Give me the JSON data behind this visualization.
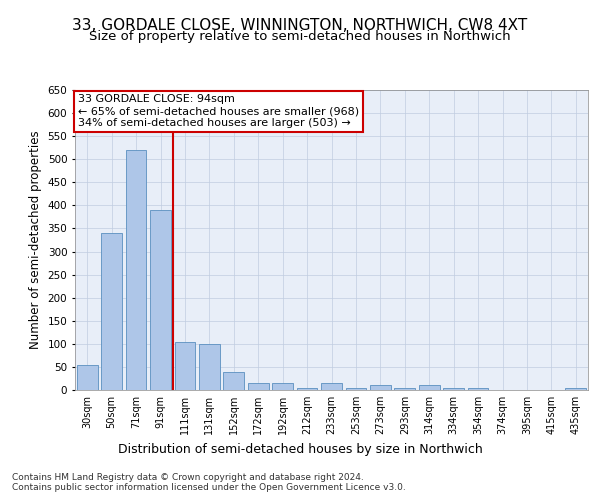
{
  "title": "33, GORDALE CLOSE, WINNINGTON, NORTHWICH, CW8 4XT",
  "subtitle": "Size of property relative to semi-detached houses in Northwich",
  "xlabel": "Distribution of semi-detached houses by size in Northwich",
  "ylabel": "Number of semi-detached properties",
  "categories": [
    "30sqm",
    "50sqm",
    "71sqm",
    "91sqm",
    "111sqm",
    "131sqm",
    "152sqm",
    "172sqm",
    "192sqm",
    "212sqm",
    "233sqm",
    "253sqm",
    "273sqm",
    "293sqm",
    "314sqm",
    "334sqm",
    "354sqm",
    "374sqm",
    "395sqm",
    "415sqm",
    "435sqm"
  ],
  "values": [
    55,
    340,
    520,
    390,
    105,
    100,
    40,
    15,
    15,
    5,
    15,
    5,
    10,
    5,
    10,
    5,
    5,
    0,
    0,
    0,
    5
  ],
  "bar_color": "#aec6e8",
  "bar_edge_color": "#5a8fc0",
  "vline_color": "#cc0000",
  "vline_pos": 3.5,
  "annotation_text": "33 GORDALE CLOSE: 94sqm\n← 65% of semi-detached houses are smaller (968)\n34% of semi-detached houses are larger (503) →",
  "annotation_box_color": "#ffffff",
  "annotation_box_edge": "#cc0000",
  "ylim": [
    0,
    650
  ],
  "yticks": [
    0,
    50,
    100,
    150,
    200,
    250,
    300,
    350,
    400,
    450,
    500,
    550,
    600,
    650
  ],
  "background_color": "#e8eef8",
  "footer": "Contains HM Land Registry data © Crown copyright and database right 2024.\nContains public sector information licensed under the Open Government Licence v3.0.",
  "title_fontsize": 11,
  "subtitle_fontsize": 9.5,
  "xlabel_fontsize": 9,
  "ylabel_fontsize": 8.5,
  "annotation_fontsize": 8,
  "footer_fontsize": 6.5
}
